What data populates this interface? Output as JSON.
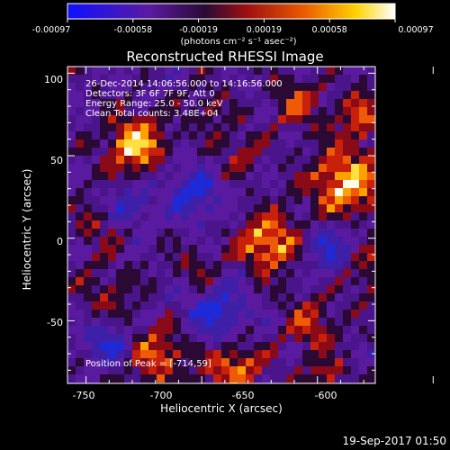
{
  "colorbar": {
    "tick_labels": [
      "-0.00097",
      "-0.00058",
      "-0.00019",
      "0.00019",
      "0.00058",
      "0.00097"
    ],
    "unit_label": "(photons cm⁻² s⁻¹ asec⁻²)",
    "colors": [
      "#1010ff",
      "#5a1aa0",
      "#2a0a35",
      "#a01010",
      "#e85a00",
      "#ffd200",
      "#ffffff"
    ]
  },
  "plot": {
    "title": "Reconstructed RHESSI Image",
    "xlabel": "Heliocentric X (arcsec)",
    "ylabel": "Heliocentric Y (arcsec)",
    "x_ticks": [
      "-750",
      "-700",
      "-650",
      "-600"
    ],
    "y_ticks": [
      "100",
      "50",
      "0",
      "-50"
    ],
    "x_tick_values": [
      -750,
      -700,
      -650,
      -600
    ],
    "y_tick_values": [
      100,
      50,
      0,
      -50
    ],
    "x_range": [
      -758,
      -625
    ],
    "y_range": [
      -88,
      104
    ]
  },
  "annotations": {
    "time_range": "26-Dec-2014 14:06:56.000 to 14:16:56.000",
    "detectors": "Detectors: 3F 6F 7F 9F, Att 0",
    "energy": "Energy Range: 25.0 - 50.0 keV",
    "clean": "Clean    Total counts: 3.48E+04",
    "peak": "Position of Peak = [-714,59]"
  },
  "footer": {
    "timestamp": "19-Sep-2017 01:50"
  }
}
